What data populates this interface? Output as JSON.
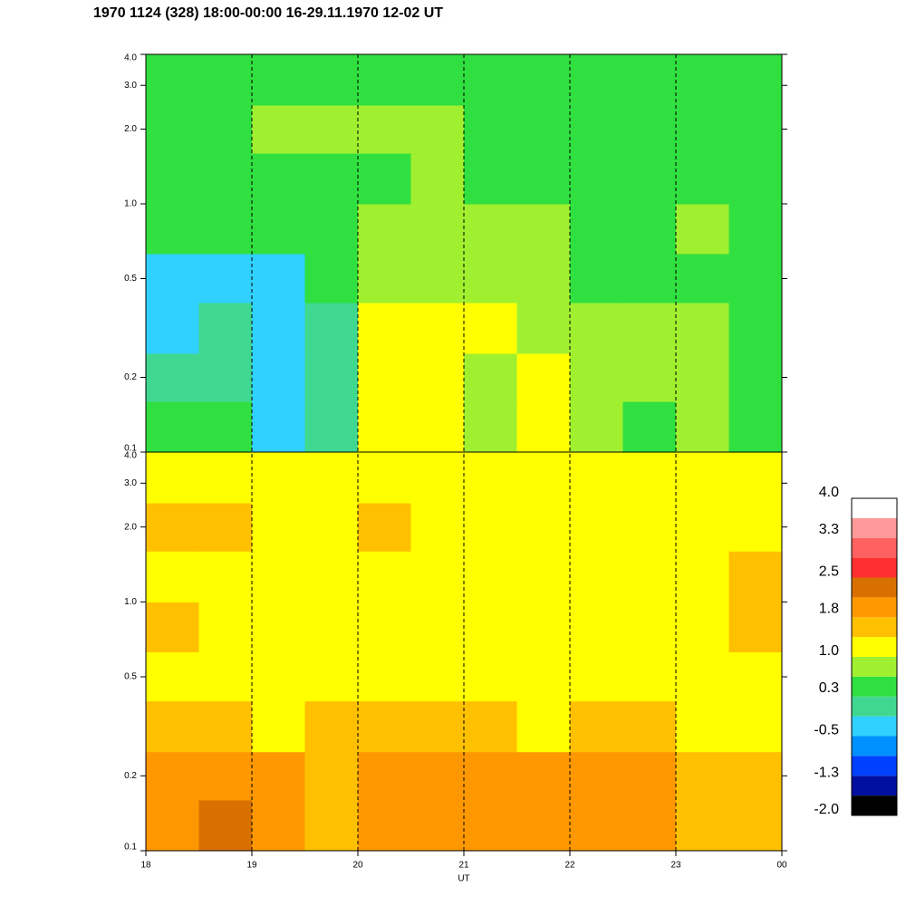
{
  "chart_data": {
    "type": "heatmap",
    "title": "1970 1124 (328) 18:00-00:00 16-29.11.1970  12-02 UT",
    "xlabel": "UT",
    "xlim": [
      18,
      24
    ],
    "xticks": [
      18,
      19,
      20,
      21,
      22,
      23,
      {
        "value": 24,
        "label": "00"
      }
    ],
    "x_edges": [
      18,
      18.5,
      19,
      19.5,
      20,
      20.5,
      21,
      21.5,
      22,
      22.5,
      23,
      23.5,
      24
    ],
    "log_y": true,
    "grid": true,
    "panels": [
      {
        "ylim": [
          0.1,
          4
        ],
        "yticks": [
          0.1,
          0.2,
          0.5,
          {
            "value": 1,
            "label": "1.0"
          },
          {
            "value": 2,
            "label": "2.0"
          },
          {
            "value": 3,
            "label": "3.0"
          },
          {
            "value": 4,
            "label": "4.0"
          }
        ],
        "y_edges": [
          0.1,
          0.16,
          0.25,
          0.4,
          0.63,
          1,
          1.6,
          2.5,
          4
        ],
        "z": [
          [
            0.4,
            0.3,
            -0.3,
            0.0,
            1.0,
            1.2,
            0.8,
            1.0,
            0.8,
            0.6,
            0.9,
            0.4
          ],
          [
            0.0,
            0.2,
            -0.4,
            0.0,
            1.1,
            1.2,
            0.9,
            1.0,
            0.8,
            0.7,
            0.9,
            0.4
          ],
          [
            -0.3,
            0.0,
            -0.5,
            0.2,
            1.0,
            1.0,
            1.0,
            0.9,
            0.7,
            0.7,
            0.8,
            0.5
          ],
          [
            -0.4,
            -0.3,
            -0.2,
            0.3,
            0.8,
            0.8,
            0.9,
            0.7,
            0.4,
            0.5,
            0.6,
            0.4
          ],
          [
            0.3,
            0.3,
            0.4,
            0.6,
            0.8,
            0.8,
            0.8,
            0.7,
            0.6,
            0.6,
            0.7,
            0.6
          ],
          [
            0.4,
            0.5,
            0.5,
            0.6,
            0.6,
            0.7,
            0.6,
            0.6,
            0.5,
            0.6,
            0.6,
            0.6
          ],
          [
            0.6,
            0.6,
            0.7,
            0.7,
            0.7,
            0.7,
            0.6,
            0.6,
            0.6,
            0.6,
            0.6,
            0.6
          ],
          [
            0.5,
            0.5,
            0.5,
            0.6,
            0.6,
            0.6,
            0.5,
            0.5,
            0.5,
            0.5,
            0.5,
            0.5
          ]
        ]
      },
      {
        "ylim": [
          0.1,
          4
        ],
        "yticks": [
          0.1,
          0.2,
          0.5,
          {
            "value": 1,
            "label": "1.0"
          },
          {
            "value": 2,
            "label": "2.0"
          },
          {
            "value": 3,
            "label": "3.0"
          },
          {
            "value": 4,
            "label": "4.0"
          }
        ],
        "y_edges": [
          0.1,
          0.16,
          0.25,
          0.4,
          0.63,
          1,
          1.6,
          2.5,
          4
        ],
        "z": [
          [
            2.0,
            2.2,
            1.8,
            1.7,
            2.0,
            2.1,
            1.8,
            1.9,
            2.0,
            1.8,
            1.7,
            1.7
          ],
          [
            1.9,
            2.1,
            1.8,
            1.7,
            1.9,
            2.0,
            1.8,
            1.9,
            1.9,
            1.8,
            1.7,
            1.6
          ],
          [
            1.6,
            1.5,
            1.3,
            1.4,
            1.6,
            1.6,
            1.4,
            1.3,
            1.4,
            1.4,
            1.3,
            1.3
          ],
          [
            1.3,
            1.2,
            1.1,
            1.2,
            1.3,
            1.3,
            1.2,
            1.2,
            1.2,
            1.2,
            1.1,
            1.3
          ],
          [
            1.4,
            1.3,
            1.1,
            1.2,
            1.2,
            1.3,
            1.3,
            1.2,
            1.2,
            1.2,
            1.2,
            1.4
          ],
          [
            1.3,
            1.2,
            1.2,
            1.2,
            1.3,
            1.2,
            1.2,
            1.2,
            1.2,
            1.2,
            1.3,
            1.4
          ],
          [
            1.5,
            1.4,
            1.3,
            1.3,
            1.4,
            1.3,
            1.3,
            1.3,
            1.3,
            1.3,
            1.3,
            1.3
          ],
          [
            1.2,
            1.1,
            1.0,
            1.1,
            1.2,
            1.1,
            1.0,
            1.1,
            1.0,
            1.0,
            1.1,
            1.0
          ]
        ]
      }
    ],
    "colorbar": {
      "clim": [
        -2,
        4
      ],
      "colors": [
        "#000000",
        "#0010a0",
        "#0040ff",
        "#0090ff",
        "#30d0ff",
        "#40d890",
        "#30e040",
        "#a0f030",
        "#ffff00",
        "#ffc000",
        "#ff9800",
        "#d87000",
        "#ff3030",
        "#ff6060",
        "#ff9898",
        "#ffffff"
      ],
      "ticks": [
        {
          "value": -2,
          "label": "-2.0"
        },
        -1.3,
        -0.5,
        0.3,
        {
          "value": 1,
          "label": "1.0"
        },
        1.8,
        2.5,
        3.3,
        {
          "value": 4,
          "label": "4.0"
        }
      ]
    }
  }
}
